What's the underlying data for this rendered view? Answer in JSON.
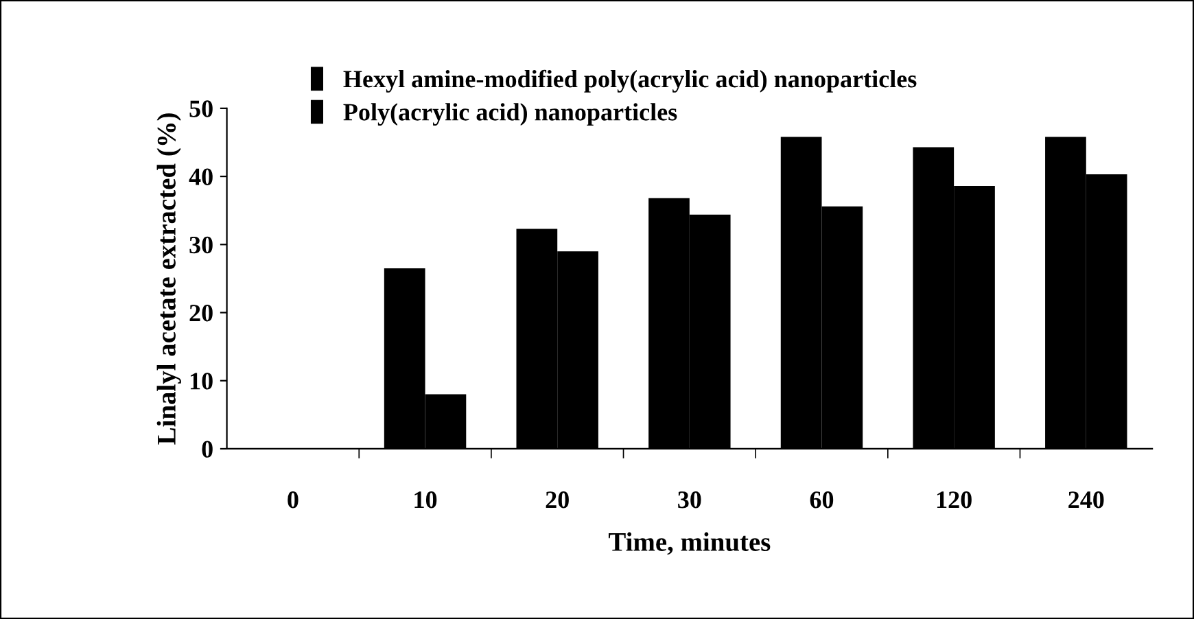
{
  "chart_data": {
    "type": "bar",
    "xlabel": "Time, minutes",
    "ylabel": "Linalyl acetate extracted (%)",
    "categories": [
      "0",
      "10",
      "20",
      "30",
      "60",
      "120",
      "240"
    ],
    "series": [
      {
        "name": "Hexyl amine-modified poly(acrylic acid) nanoparticles",
        "color": "#000000",
        "values": [
          0,
          26.5,
          32.3,
          36.8,
          45.8,
          44.3,
          45.8
        ]
      },
      {
        "name": "Poly(acrylic acid) nanoparticles",
        "color": "#000000",
        "values": [
          0,
          8.0,
          29.0,
          34.4,
          35.6,
          38.6,
          40.3
        ]
      }
    ],
    "ylim": [
      0,
      50
    ],
    "yticks": [
      0,
      10,
      20,
      30,
      40,
      50
    ],
    "grid": false,
    "legend": "top left"
  }
}
